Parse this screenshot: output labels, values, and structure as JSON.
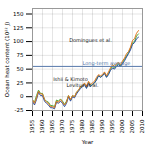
{
  "chart_data": {
    "type": "line",
    "xlabel": "Year",
    "ylabel": "Ocean heat content (10²² J)",
    "x": [
      1955,
      1956,
      1957,
      1958,
      1959,
      1960,
      1961,
      1962,
      1963,
      1964,
      1965,
      1966,
      1967,
      1968,
      1969,
      1970,
      1971,
      1972,
      1973,
      1974,
      1975,
      1976,
      1977,
      1978,
      1979,
      1980,
      1981,
      1982,
      1983,
      1984,
      1985,
      1986,
      1987,
      1988,
      1989,
      1990,
      1991,
      1992,
      1993,
      1994,
      1995,
      1996,
      1997,
      1998,
      1999,
      2000,
      2001,
      2002,
      2003,
      2004,
      2005,
      2006,
      2007,
      2008
    ],
    "series": [
      {
        "name": "Ishii & Kimoto",
        "color": "#4aaa44",
        "values": [
          -6,
          -10,
          2,
          12,
          6,
          6,
          -5,
          -8,
          -10,
          -16,
          -16,
          -18,
          -6,
          -8,
          -4,
          -8,
          -14,
          -8,
          2,
          -6,
          2,
          0,
          8,
          12,
          18,
          20,
          24,
          16,
          26,
          20,
          22,
          25,
          32,
          38,
          36,
          38,
          44,
          36,
          42,
          50,
          55,
          52,
          58,
          60,
          56,
          62,
          68,
          74,
          80,
          88,
          98,
          100,
          110,
          114
        ]
      },
      {
        "name": "Levitus et al.",
        "color": "#2b4f9e",
        "values": [
          -8,
          -15,
          -5,
          8,
          2,
          2,
          -8,
          -12,
          -15,
          -20,
          -20,
          -22,
          -10,
          -12,
          -8,
          -12,
          -18,
          -12,
          0,
          -8,
          0,
          -2,
          5,
          10,
          15,
          18,
          22,
          15,
          25,
          18,
          22,
          25,
          30,
          38,
          35,
          38,
          42,
          35,
          40,
          48,
          52,
          50,
          55,
          58,
          55,
          60,
          65,
          72,
          78,
          85,
          95,
          98,
          105,
          108
        ]
      },
      {
        "name": "Domingues et al.",
        "color": "#e07820",
        "values": [
          -5,
          -12,
          -2,
          10,
          5,
          5,
          -5,
          -10,
          -12,
          -18,
          -18,
          -20,
          -8,
          -10,
          -5,
          -10,
          -15,
          -10,
          2,
          -5,
          2,
          0,
          8,
          12,
          18,
          20,
          25,
          18,
          28,
          22,
          25,
          28,
          35,
          40,
          38,
          40,
          45,
          38,
          45,
          52,
          58,
          55,
          60,
          62,
          58,
          65,
          70,
          78,
          82,
          90,
          102,
          105,
          115,
          120
        ]
      }
    ],
    "reference_line": {
      "y": 55,
      "color": "#5577aa"
    },
    "annotations": [
      {
        "text": "Domingues et al.",
        "x": 1984,
        "y": 100,
        "color": "#222222"
      },
      {
        "text": "Levitus et al.",
        "x": 1980,
        "y": 18,
        "color": "#222222"
      },
      {
        "text": "Long-term average",
        "x": 1992,
        "y": 58,
        "color": "#5577aa"
      },
      {
        "text": "Ishii & Kimoto",
        "x": 1974,
        "y": 28,
        "color": "#222222"
      }
    ],
    "xlim": [
      1955,
      2010
    ],
    "xticks": [
      1955,
      1960,
      1965,
      1970,
      1975,
      1980,
      1985,
      1990,
      1995,
      2000,
      2005,
      2010
    ],
    "ylim": [
      -25,
      160
    ],
    "yticks": [
      -25,
      0,
      25,
      50,
      75,
      100,
      125,
      150
    ],
    "grid": true
  }
}
